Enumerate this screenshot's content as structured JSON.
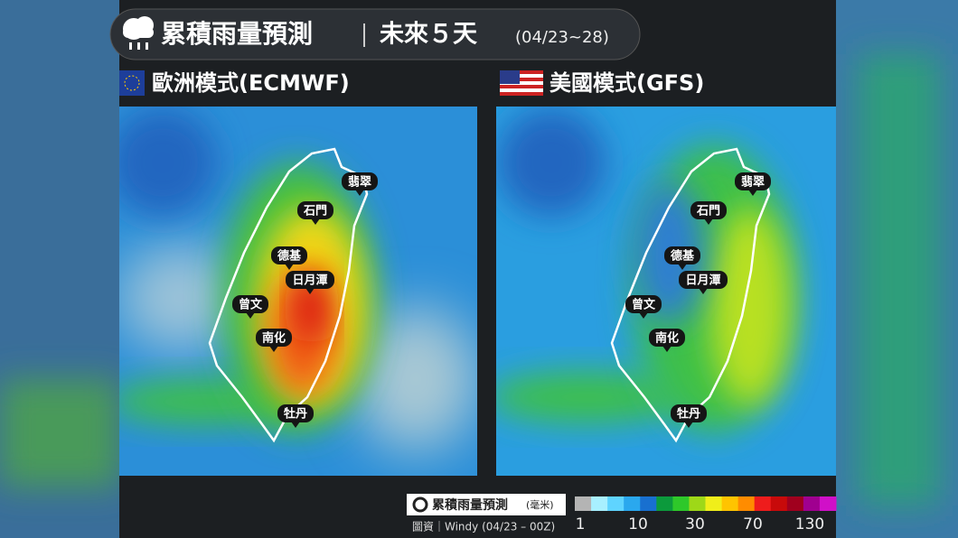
{
  "header": {
    "title": "累積雨量預測",
    "period": "未來５天",
    "dates": "(04/23~28)"
  },
  "panels": [
    {
      "label": "歐洲模式(ECMWF)",
      "sites": [
        "翡翠",
        "石門",
        "德基",
        "日月潭",
        "曾文",
        "南化",
        "牡丹"
      ]
    },
    {
      "label": "美國模式(GFS)",
      "sites": [
        "翡翠",
        "石門",
        "德基",
        "日月潭",
        "曾文",
        "南化",
        "牡丹"
      ]
    }
  ],
  "legend": {
    "title": "累積雨量預測",
    "unit": "(毫米)",
    "source": "圖資｜Windy (04/23 – 00Z)",
    "colors": [
      "#b4b4b4",
      "#a8f0ff",
      "#5fd4ff",
      "#2aa8ee",
      "#1870d0",
      "#0c9a3c",
      "#2ec82a",
      "#9ed818",
      "#f0ee1a",
      "#ffc400",
      "#ff8c00",
      "#ee1c1c",
      "#c80a0a",
      "#a0001e",
      "#a00090",
      "#d010c8"
    ],
    "ticks": [
      1,
      10,
      30,
      70,
      130
    ]
  }
}
